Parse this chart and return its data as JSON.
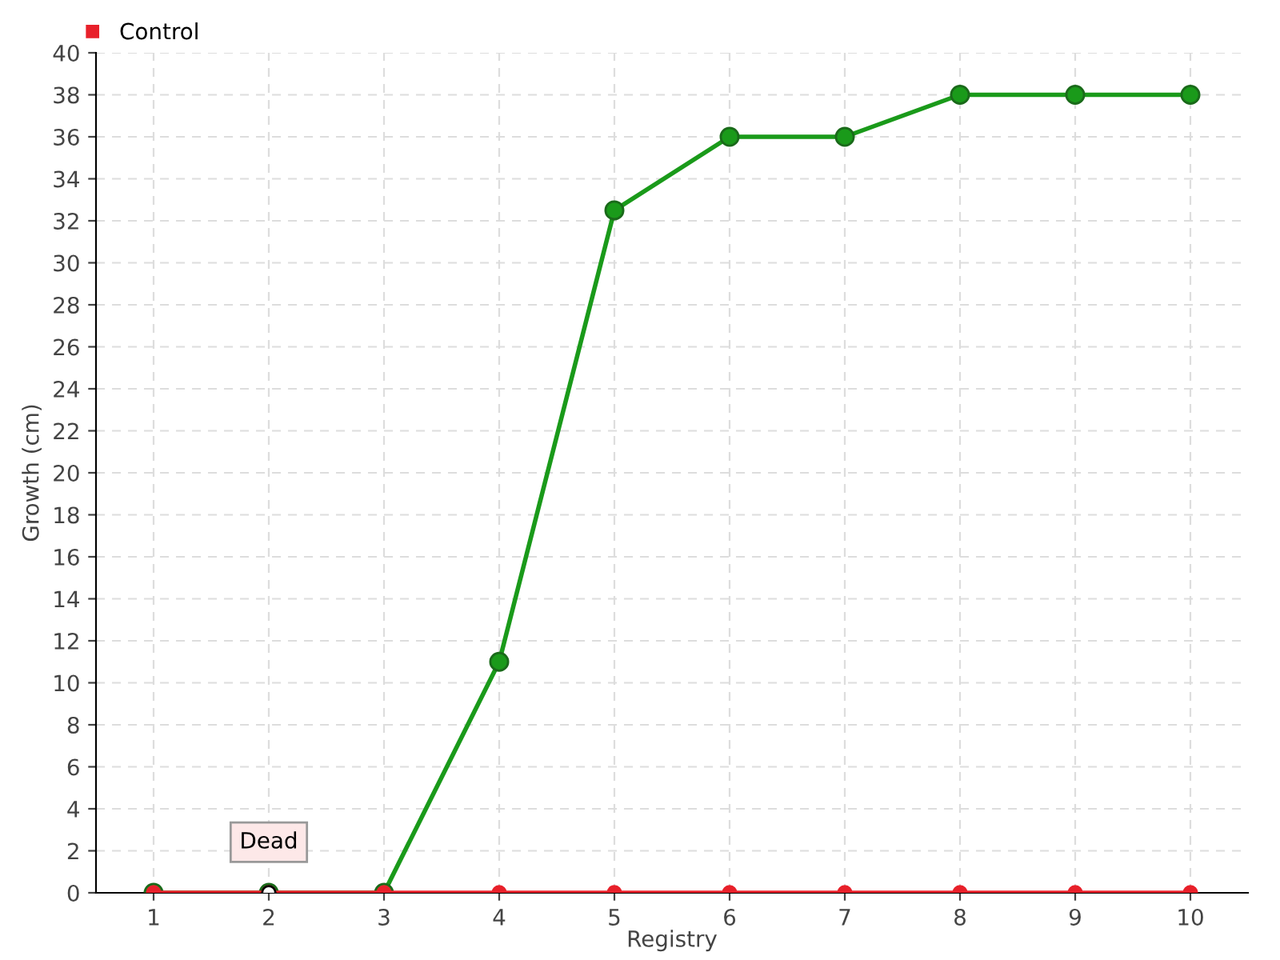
{
  "chart_data": {
    "type": "line",
    "xlabel": "Registry",
    "ylabel": "Growth (cm)",
    "categories": [
      "1",
      "2",
      "3",
      "4",
      "5",
      "6",
      "7",
      "8",
      "9",
      "10"
    ],
    "series": [
      {
        "color": "#1a9a1a",
        "values": [
          0,
          0,
          0,
          11,
          32.5,
          36,
          36,
          38,
          38,
          38
        ]
      },
      {
        "name": "Control",
        "color": "#e8202a",
        "values": [
          0,
          0,
          0,
          0,
          0,
          0,
          0,
          0,
          0,
          0
        ]
      }
    ],
    "ylim": [
      0,
      40
    ],
    "yticks": [
      0,
      2,
      4,
      6,
      8,
      10,
      12,
      14,
      16,
      18,
      20,
      22,
      24,
      26,
      28,
      30,
      32,
      34,
      36,
      38,
      40
    ],
    "grid": true,
    "legend": "top left",
    "marker": "circle",
    "line_style": "solid",
    "annotations": [
      {
        "text": "Dead",
        "x": "2",
        "y": 0
      }
    ]
  }
}
